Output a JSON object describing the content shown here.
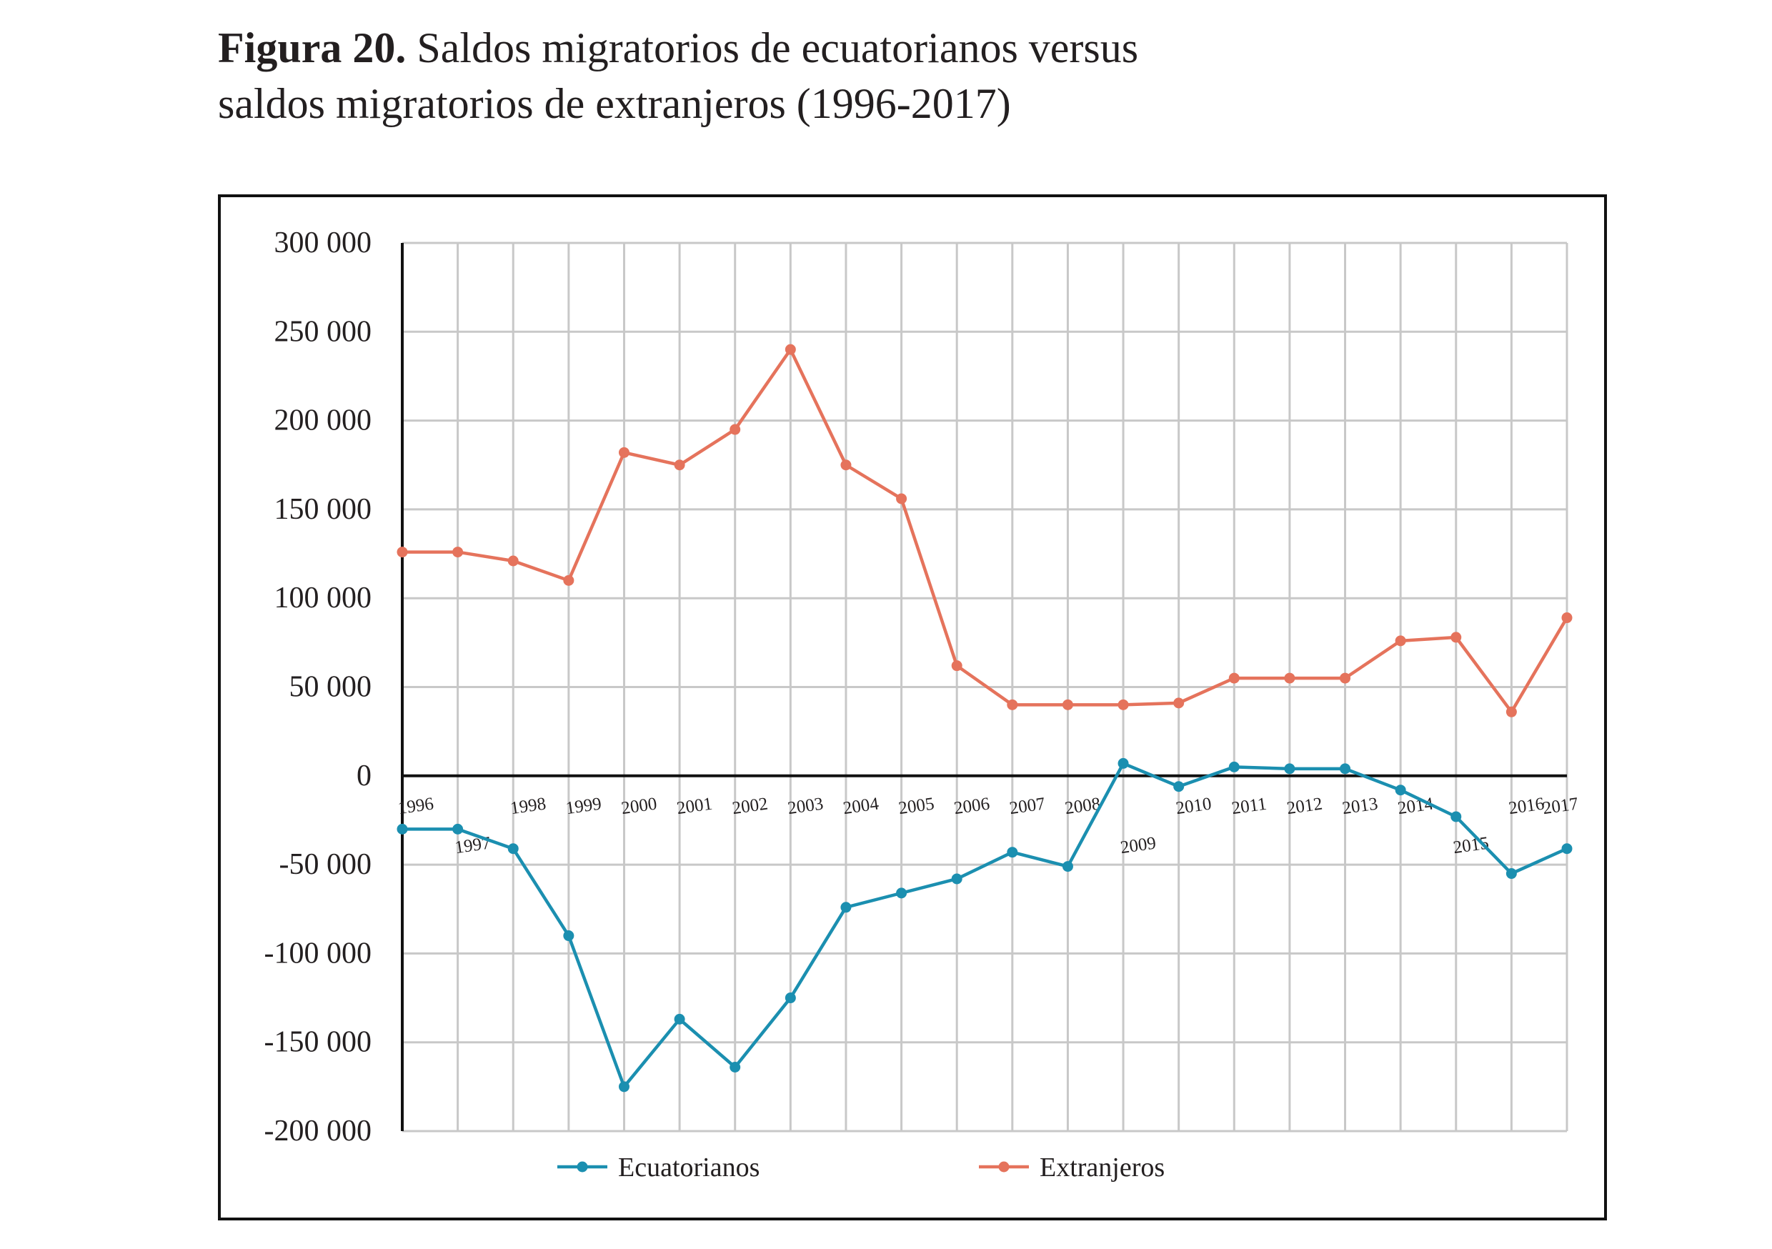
{
  "caption": {
    "label": "Figura 20.",
    "line1": "Saldos migratorios de ecuatorianos versus",
    "line2": "saldos migratorios de extranjeros (1996-2017)"
  },
  "chart_data": {
    "type": "line",
    "title": "",
    "xlabel": "",
    "ylabel": "",
    "x": [
      "1996",
      "1997",
      "1998",
      "1999",
      "2000",
      "2001",
      "2002",
      "2003",
      "2004",
      "2005",
      "2006",
      "2007",
      "2008",
      "2009",
      "2010",
      "2011",
      "2012",
      "2013",
      "2014",
      "2015",
      "2016",
      "2017"
    ],
    "ylim": [
      -200000,
      300000
    ],
    "y_ticks": [
      300000,
      250000,
      200000,
      150000,
      100000,
      50000,
      0,
      -50000,
      -100000,
      -150000,
      -200000
    ],
    "y_tick_labels": [
      "300 000",
      "250 000",
      "200 000",
      "150 000",
      "100 000",
      "50 000",
      "0",
      "-50 000",
      "-100 000",
      "-150 000",
      "-200 000"
    ],
    "grid": true,
    "legend_position": "bottom",
    "series": [
      {
        "name": "Ecuatorianos",
        "color": "#1b8fb0",
        "values": [
          -30000,
          -30000,
          -41000,
          -90000,
          -175000,
          -137000,
          -164000,
          -125000,
          -74000,
          -66000,
          -58000,
          -43000,
          -51000,
          7000,
          -6000,
          5000,
          4000,
          4000,
          -8000,
          -23000,
          -55000,
          -41000
        ]
      },
      {
        "name": "Extranjeros",
        "color": "#e5735c",
        "values": [
          126000,
          126000,
          121000,
          110000,
          182000,
          175000,
          195000,
          240000,
          175000,
          156000,
          62000,
          40000,
          40000,
          40000,
          41000,
          55000,
          55000,
          55000,
          76000,
          78000,
          36000,
          89000
        ]
      }
    ]
  }
}
